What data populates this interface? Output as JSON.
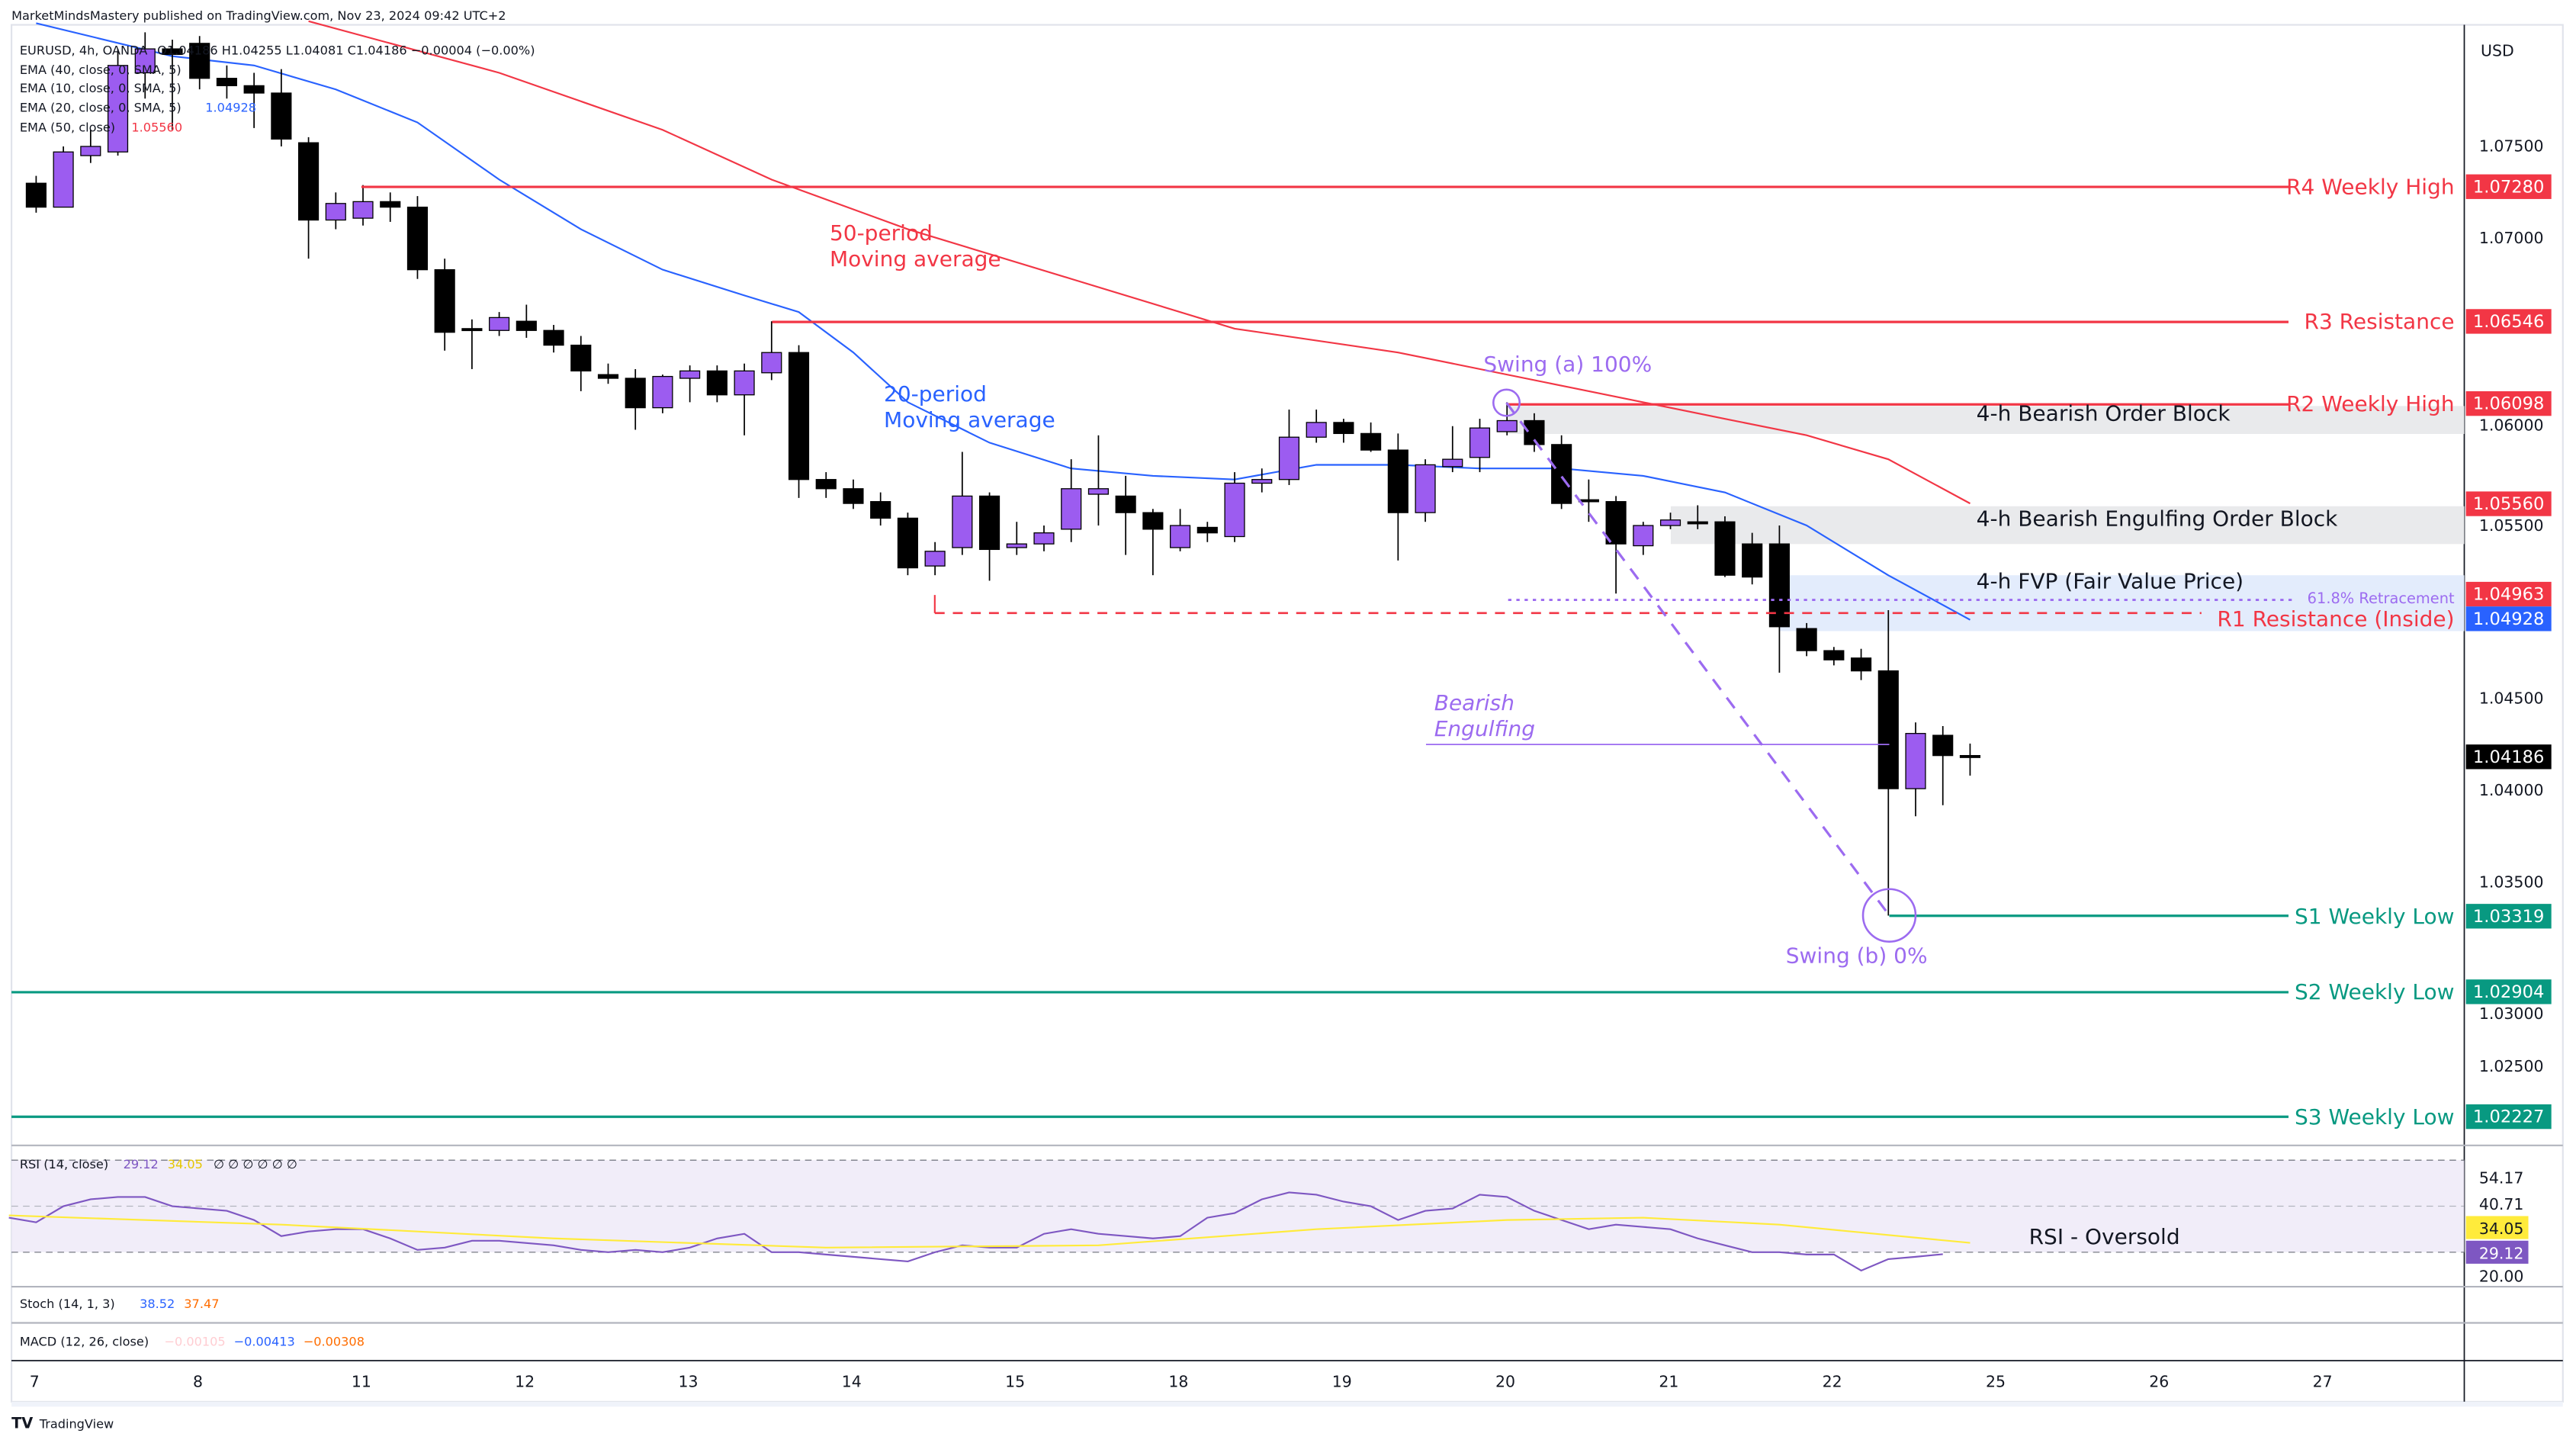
{
  "header": {
    "published": "MarketMindsMastery published on TradingView.com, Nov 23, 2024 09:42 UTC+2"
  },
  "legend": {
    "symbol": "EURUSD, 4h, OANDA",
    "ohlc": "O1.04186  H1.04255  L1.04081  C1.04186  −0.00004 (−0.00%)",
    "ema40": "EMA (40, close, 0, SMA, 5)",
    "ema10": "EMA (10, close, 0, SMA, 5)",
    "ema20": "EMA (20, close, 0, SMA, 5)",
    "ema20_value": "1.04928",
    "ema50": "EMA (50, close)",
    "ema50_value": "1.05560"
  },
  "price_axis": {
    "currency": "USD",
    "ticks": [
      "1.07500",
      "1.07000",
      "1.06000",
      "1.05500",
      "1.04500",
      "1.04000",
      "1.03500",
      "1.03000",
      "1.02500"
    ],
    "tick_values": [
      1.075,
      1.07,
      1.06,
      1.055,
      1.045,
      1.04,
      1.035,
      1.03,
      1.025
    ]
  },
  "time_axis": {
    "labels": [
      "7",
      "8",
      "11",
      "12",
      "13",
      "14",
      "15",
      "18",
      "19",
      "20",
      "21",
      "22",
      "25",
      "26",
      "27"
    ]
  },
  "colors": {
    "bull": "#9c5cf0",
    "bear": "#000000",
    "ma20": "#2962ff",
    "ma50": "#f23645",
    "resistance": "#f23645",
    "support": "#089981",
    "purple": "#9c6bf0",
    "rsi": "#7e57c2",
    "rsi_ma": "#ffeb3b"
  },
  "annotations": {
    "r4": {
      "label": "R4 Weekly High",
      "price": "1.07280",
      "value": 1.0728
    },
    "r3": {
      "label": "R3 Resistance",
      "price": "1.06546",
      "value": 1.06546
    },
    "r2": {
      "label": "R2 Weekly High",
      "price": "1.06098",
      "value": 1.06098
    },
    "r1": {
      "label": "R1 Resistance (Inside)",
      "price": "1.04963",
      "value": 1.04963
    },
    "ma20_tag": "1.04928",
    "ma50_tag": "1.05560",
    "last_price": "1.04186",
    "s1": {
      "label": "S1 Weekly Low",
      "price": "1.03319",
      "value": 1.03319
    },
    "s2": {
      "label": "S2 Weekly Low",
      "price": "1.02904",
      "value": 1.02904
    },
    "s3": {
      "label": "S3 Weekly Low",
      "price": "1.02227",
      "value": 1.02227
    },
    "order_block": "4-h Bearish Order Block",
    "engulfing_block": "4-h Bearish Engulfing Order Block",
    "fvp": "4-h FVP (Fair Value Price)",
    "retracement": "61.8% Retracement",
    "swing_a": "Swing (a) 100%",
    "swing_b": "Swing (b) 0%",
    "bearish_engulfing": [
      "Bearish",
      "Engulfing"
    ],
    "ma50_note": [
      "50-period",
      "Moving average"
    ],
    "ma20_note": [
      "20-period",
      "Moving average"
    ],
    "rsi_note": "RSI - Oversold"
  },
  "rsi": {
    "title": "RSI (14, close)",
    "value": "29.12",
    "ma_value": "34.05",
    "extras": "∅ ∅ ∅ ∅ ∅ ∅",
    "axis": [
      "54.17",
      "40.71",
      "34.05",
      "29.12",
      "20.00"
    ],
    "series": [
      45,
      43,
      50,
      53,
      54,
      54,
      50,
      49,
      48,
      44,
      37,
      39,
      40,
      40,
      36,
      31,
      32,
      35,
      35,
      34,
      33,
      31,
      30,
      31,
      30,
      32,
      36,
      38,
      30,
      30,
      29,
      28,
      27,
      26,
      30,
      33,
      32,
      32,
      38,
      40,
      38,
      37,
      36,
      37,
      45,
      47,
      53,
      56,
      55,
      52,
      50,
      44,
      48,
      49,
      55,
      54,
      48,
      44,
      40,
      42,
      41,
      40,
      36,
      33,
      30,
      30,
      29,
      29,
      22,
      27,
      28,
      29.12
    ],
    "ma": [
      [
        0,
        46
      ],
      [
        10,
        42
      ],
      [
        20,
        36
      ],
      [
        30,
        32
      ],
      [
        40,
        33
      ],
      [
        48,
        40
      ],
      [
        55,
        44
      ],
      [
        60,
        45
      ],
      [
        65,
        42
      ],
      [
        72,
        34.05
      ]
    ]
  },
  "stoch": {
    "title": "Stoch (14, 1, 3)",
    "k": "38.52",
    "d": "37.47"
  },
  "macd": {
    "title": "MACD (12, 26, close)",
    "hist": "−0.00105",
    "macd": "−0.00413",
    "signal": "−0.00308"
  },
  "footer": {
    "brand": "TradingView"
  },
  "chart_data": {
    "type": "candlestick",
    "title": "EURUSD, 4h, OANDA",
    "ylim": [
      1.0185,
      1.083
    ],
    "candles": [
      [
        1.073,
        1.0734,
        1.0714,
        1.0717
      ],
      [
        1.0717,
        1.075,
        1.0717,
        1.0747
      ],
      [
        1.0745,
        1.0759,
        1.0741,
        1.075
      ],
      [
        1.0747,
        1.0803,
        1.0745,
        1.0794
      ],
      [
        1.079,
        1.0812,
        1.0776,
        1.0803
      ],
      [
        1.0803,
        1.0808,
        1.0759,
        1.08
      ],
      [
        1.0806,
        1.081,
        1.0781,
        1.0787
      ],
      [
        1.0787,
        1.0794,
        1.0776,
        1.0783
      ],
      [
        1.0783,
        1.079,
        1.076,
        1.0779
      ],
      [
        1.0779,
        1.0792,
        1.075,
        1.0754
      ],
      [
        1.0752,
        1.0755,
        1.0689,
        1.071
      ],
      [
        1.071,
        1.0725,
        1.0705,
        1.0719
      ],
      [
        1.0711,
        1.0729,
        1.0707,
        1.072
      ],
      [
        1.072,
        1.0725,
        1.0709,
        1.0717
      ],
      [
        1.0717,
        1.0723,
        1.0678,
        1.0683
      ],
      [
        1.0683,
        1.0689,
        1.0639,
        1.0649
      ],
      [
        1.0651,
        1.0656,
        1.0629,
        1.065
      ],
      [
        1.065,
        1.066,
        1.0647,
        1.0657
      ],
      [
        1.0655,
        1.0664,
        1.0646,
        1.065
      ],
      [
        1.065,
        1.0653,
        1.0638,
        1.0642
      ],
      [
        1.0642,
        1.0647,
        1.0617,
        1.0628
      ],
      [
        1.0626,
        1.0632,
        1.0621,
        1.0624
      ],
      [
        1.0624,
        1.0629,
        1.0596,
        1.0608
      ],
      [
        1.0608,
        1.0626,
        1.0605,
        1.0625
      ],
      [
        1.0624,
        1.0631,
        1.0611,
        1.0628
      ],
      [
        1.0628,
        1.0631,
        1.0611,
        1.0615
      ],
      [
        1.0615,
        1.0632,
        1.0593,
        1.0628
      ],
      [
        1.0627,
        1.0655,
        1.0623,
        1.0638
      ],
      [
        1.0638,
        1.0642,
        1.0559,
        1.0569
      ],
      [
        1.0569,
        1.0573,
        1.0559,
        1.0564
      ],
      [
        1.0564,
        1.0569,
        1.0553,
        1.0556
      ],
      [
        1.0557,
        1.0562,
        1.0544,
        1.0548
      ],
      [
        1.0548,
        1.0551,
        1.0517,
        1.0521
      ],
      [
        1.0522,
        1.0535,
        1.0517,
        1.053
      ],
      [
        1.0532,
        1.0584,
        1.0528,
        1.056
      ],
      [
        1.056,
        1.0562,
        1.0514,
        1.0531
      ],
      [
        1.0532,
        1.0546,
        1.0528,
        1.0534
      ],
      [
        1.0534,
        1.0544,
        1.053,
        1.054
      ],
      [
        1.0542,
        1.058,
        1.0535,
        1.0564
      ],
      [
        1.0561,
        1.0593,
        1.0544,
        1.0564
      ],
      [
        1.056,
        1.0571,
        1.0528,
        1.0551
      ],
      [
        1.0551,
        1.0553,
        1.0517,
        1.0542
      ],
      [
        1.0532,
        1.0553,
        1.053,
        1.0544
      ],
      [
        1.0543,
        1.0546,
        1.0535,
        1.054
      ],
      [
        1.0538,
        1.0573,
        1.0535,
        1.0567
      ],
      [
        1.0567,
        1.0575,
        1.0562,
        1.0569
      ],
      [
        1.0569,
        1.0607,
        1.0566,
        1.0592
      ],
      [
        1.0592,
        1.0607,
        1.0589,
        1.06
      ],
      [
        1.06,
        1.0602,
        1.0589,
        1.0594
      ],
      [
        1.0594,
        1.06,
        1.0584,
        1.0585
      ],
      [
        1.0585,
        1.0594,
        1.0525,
        1.0551
      ],
      [
        1.0551,
        1.058,
        1.0546,
        1.0577
      ],
      [
        1.0576,
        1.0598,
        1.0573,
        1.058
      ],
      [
        1.0581,
        1.0602,
        1.0573,
        1.0597
      ],
      [
        1.0595,
        1.0611,
        1.0593,
        1.0601
      ],
      [
        1.0601,
        1.0605,
        1.0584,
        1.0588
      ],
      [
        1.0588,
        1.0593,
        1.0553,
        1.0556
      ],
      [
        1.0558,
        1.0569,
        1.0546,
        1.0557
      ],
      [
        1.0557,
        1.056,
        1.0507,
        1.0534
      ],
      [
        1.0533,
        1.0546,
        1.0528,
        1.0544
      ],
      [
        1.0544,
        1.0551,
        1.0542,
        1.0547
      ],
      [
        1.0546,
        1.0555,
        1.0542,
        1.0545
      ],
      [
        1.0546,
        1.0549,
        1.0516,
        1.0517
      ],
      [
        1.0534,
        1.054,
        1.0512,
        1.0516
      ],
      [
        1.0534,
        1.0544,
        1.0464,
        1.0489
      ],
      [
        1.0488,
        1.0491,
        1.0473,
        1.0476
      ],
      [
        1.0476,
        1.0478,
        1.0468,
        1.0471
      ],
      [
        1.0472,
        1.0477,
        1.046,
        1.0465
      ],
      [
        1.0465,
        1.0498,
        1.0332,
        1.0401
      ],
      [
        1.0401,
        1.0437,
        1.0386,
        1.0431
      ],
      [
        1.043,
        1.0435,
        1.0392,
        1.0419
      ],
      [
        1.0419,
        1.04255,
        1.04081,
        1.04186
      ]
    ],
    "ma20": [
      [
        0,
        1.0817
      ],
      [
        5,
        1.0799
      ],
      [
        8,
        1.0794
      ],
      [
        11,
        1.0781
      ],
      [
        14,
        1.0763
      ],
      [
        17,
        1.0732
      ],
      [
        20,
        1.0705
      ],
      [
        23,
        1.0683
      ],
      [
        26,
        1.0669
      ],
      [
        28,
        1.066
      ],
      [
        30,
        1.0638
      ],
      [
        32,
        1.0611
      ],
      [
        35,
        1.0589
      ],
      [
        38,
        1.0575
      ],
      [
        41,
        1.0571
      ],
      [
        44,
        1.0569
      ],
      [
        47,
        1.0577
      ],
      [
        50,
        1.0577
      ],
      [
        53,
        1.0575
      ],
      [
        56,
        1.0575
      ],
      [
        59,
        1.0571
      ],
      [
        62,
        1.0562
      ],
      [
        65,
        1.0544
      ],
      [
        68,
        1.0517
      ],
      [
        71,
        1.04928
      ]
    ],
    "ma50": [
      [
        10,
        1.0818
      ],
      [
        17,
        1.079
      ],
      [
        23,
        1.0759
      ],
      [
        27,
        1.0732
      ],
      [
        32,
        1.0705
      ],
      [
        38,
        1.0678
      ],
      [
        44,
        1.0651
      ],
      [
        50,
        1.0638
      ],
      [
        56,
        1.062
      ],
      [
        59,
        1.0611
      ],
      [
        62,
        1.0602
      ],
      [
        65,
        1.0593
      ],
      [
        68,
        1.058
      ],
      [
        71,
        1.0556
      ]
    ]
  }
}
